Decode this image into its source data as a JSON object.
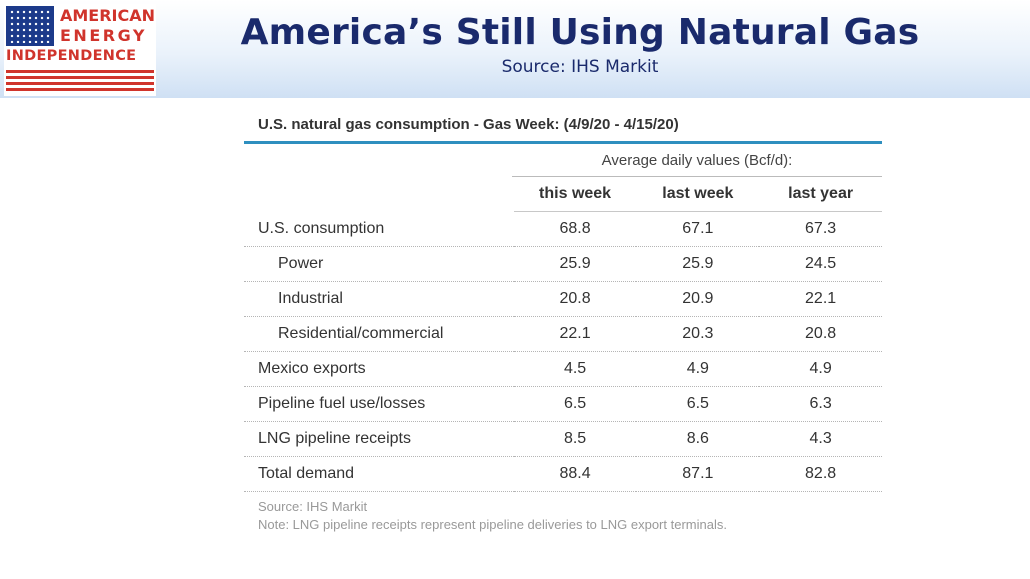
{
  "header": {
    "title": "America’s Still Using Natural Gas",
    "subtitle": "Source: IHS Markit",
    "logo": {
      "line1": "AMERICAN",
      "line2": "ENERGY",
      "line3": "INDEPENDENCE",
      "colors": {
        "red": "#d0342c",
        "blue": "#1c3a8a"
      }
    }
  },
  "table": {
    "title": "U.S. natural gas consumption - Gas Week: (4/9/20 - 4/15/20)",
    "group_header": "Average daily values (Bcf/d):",
    "columns": [
      "this week",
      "last week",
      "last year"
    ],
    "rows": [
      {
        "label": "U.S. consumption",
        "values": [
          "68.8",
          "67.1",
          "67.3"
        ]
      },
      {
        "label": "Power",
        "values": [
          "25.9",
          "25.9",
          "24.5"
        ]
      },
      {
        "label": "Industrial",
        "values": [
          "20.8",
          "20.9",
          "22.1"
        ]
      },
      {
        "label": "Residential/commercial",
        "values": [
          "22.1",
          "20.3",
          "20.8"
        ]
      },
      {
        "label": "Mexico exports",
        "values": [
          "4.5",
          "4.9",
          "4.9"
        ]
      },
      {
        "label": "Pipeline fuel use/losses",
        "values": [
          "6.5",
          "6.5",
          "6.3"
        ]
      },
      {
        "label": "LNG pipeline receipts",
        "values": [
          "8.5",
          "8.6",
          "4.3"
        ]
      },
      {
        "label": "Total demand",
        "values": [
          "88.4",
          "87.1",
          "82.8"
        ]
      }
    ],
    "source_note": "Source: IHS Markit",
    "note": "Note: LNG pipeline receipts represent pipeline deliveries to LNG export terminals.",
    "accent_color": "#2e8fbf"
  }
}
